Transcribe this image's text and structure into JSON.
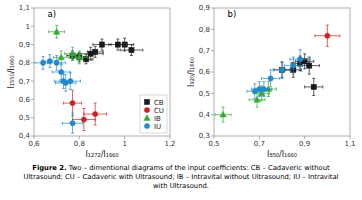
{
  "chart_data": [
    {
      "type": "scatter",
      "annotations": [
        "a)"
      ],
      "x_label": "I₁₂₇₂/I₁₆₆₀",
      "y_label": "I₁₅₅₀/I₁₆₆₀",
      "xlim": [
        0.6,
        1.2
      ],
      "ylim": [
        0.4,
        1.1
      ],
      "xticks": [
        {
          "value": 0.6,
          "label": "0,6"
        },
        {
          "value": 0.8,
          "label": "0,8"
        },
        1,
        {
          "value": 1.2,
          "label": "1,2"
        }
      ],
      "yticks": [
        {
          "value": 0.4,
          "label": "0,4"
        },
        {
          "value": 0.5,
          "label": "0,5"
        },
        {
          "value": 0.6,
          "label": "0,6"
        },
        {
          "value": 0.7,
          "label": "0,7"
        },
        {
          "value": 0.8,
          "label": "0,8"
        },
        {
          "value": 0.9,
          "label": "0,9"
        },
        1,
        {
          "value": 1.1,
          "label": "1,1"
        }
      ],
      "grid": false,
      "legend": "lower right",
      "series": [
        {
          "name": "CB",
          "color": "#1a1a1a",
          "marker": "square",
          "x": [
            0.77,
            0.8,
            0.83,
            0.87,
            0.9,
            0.97,
            1.0,
            1.03,
            0.85
          ],
          "values": [
            0.84,
            0.83,
            0.82,
            0.86,
            0.9,
            0.9,
            0.9,
            0.87,
            0.85
          ],
          "xerr": [
            0.025,
            0.025,
            0.03,
            0.035,
            0.04,
            0.04,
            0.04,
            0.05,
            0.055
          ],
          "yerr": [
            0.025,
            0.025,
            0.025,
            0.03,
            0.03,
            0.03,
            0.035,
            0.03,
            0.035
          ]
        },
        {
          "name": "CU",
          "color": "#cc2222",
          "marker": "circle",
          "x": [
            0.77,
            0.82,
            0.87
          ],
          "values": [
            0.58,
            0.49,
            0.52
          ],
          "xerr": [
            0.04,
            0.05,
            0.05
          ],
          "yerr": [
            0.07,
            0.06,
            0.06
          ]
        },
        {
          "name": "IB",
          "color": "#33aa33",
          "marker": "triangle-up",
          "x": [
            0.7,
            0.72,
            0.77,
            0.8
          ],
          "values": [
            0.97,
            0.83,
            0.85,
            0.83
          ],
          "xerr": [
            0.035,
            0.035,
            0.035,
            0.035
          ],
          "yerr": [
            0.035,
            0.035,
            0.035,
            0.035
          ]
        },
        {
          "name": "IU",
          "color": "#2288cc",
          "marker": "circle",
          "x": [
            0.64,
            0.67,
            0.7,
            0.72,
            0.73,
            0.74,
            0.76,
            0.77
          ],
          "values": [
            0.8,
            0.81,
            0.8,
            0.75,
            0.7,
            0.69,
            0.7,
            0.47
          ],
          "xerr": [
            0.035,
            0.035,
            0.04,
            0.04,
            0.04,
            0.045,
            0.045,
            0.045
          ],
          "yerr": [
            0.035,
            0.035,
            0.04,
            0.04,
            0.04,
            0.045,
            0.045,
            0.055
          ]
        }
      ]
    },
    {
      "type": "scatter",
      "annotations": [
        "b)"
      ],
      "x_label": "I₈₅₀/I₁₆₆₀",
      "y_label": "I₉₂₀/I₁₆₆₀",
      "xlim": [
        0.5,
        1.1
      ],
      "ylim": [
        0.3,
        0.9
      ],
      "xticks": [
        {
          "value": 0.5,
          "label": "0,5"
        },
        {
          "value": 0.7,
          "label": "0,7"
        },
        {
          "value": 0.9,
          "label": "0,9"
        },
        {
          "value": 1.1,
          "label": "1,1"
        }
      ],
      "yticks": [
        {
          "value": 0.3,
          "label": "0,3"
        },
        {
          "value": 0.4,
          "label": "0,4"
        },
        {
          "value": 0.5,
          "label": "0,5"
        },
        {
          "value": 0.6,
          "label": "0,6"
        },
        {
          "value": 0.7,
          "label": "0,7"
        },
        {
          "value": 0.8,
          "label": "0,8"
        },
        {
          "value": 0.9,
          "label": "0,9"
        }
      ],
      "grid": false,
      "series": [
        {
          "name": "CB",
          "color": "#1a1a1a",
          "marker": "square",
          "x": [
            0.8,
            0.85,
            0.88,
            0.9,
            0.92,
            0.94
          ],
          "values": [
            0.61,
            0.61,
            0.64,
            0.65,
            0.63,
            0.53
          ],
          "xerr": [
            0.035,
            0.035,
            0.04,
            0.04,
            0.045,
            0.04
          ],
          "yerr": [
            0.035,
            0.035,
            0.035,
            0.035,
            0.04,
            0.04
          ]
        },
        {
          "name": "CU",
          "color": "#cc2222",
          "marker": "circle",
          "x": [
            1.0
          ],
          "values": [
            0.77
          ],
          "xerr": [
            0.055
          ],
          "yerr": [
            0.05
          ]
        },
        {
          "name": "IB",
          "color": "#33aa33",
          "marker": "triangle-up",
          "x": [
            0.54,
            0.69,
            0.71,
            0.74
          ],
          "values": [
            0.4,
            0.47,
            0.5,
            0.52
          ],
          "xerr": [
            0.035,
            0.035,
            0.035,
            0.035
          ],
          "yerr": [
            0.035,
            0.035,
            0.035,
            0.035
          ]
        },
        {
          "name": "IU",
          "color": "#2288cc",
          "marker": "circle",
          "x": [
            0.68,
            0.7,
            0.72,
            0.75,
            0.8,
            0.85,
            0.88
          ],
          "values": [
            0.51,
            0.52,
            0.52,
            0.57,
            0.61,
            0.63,
            0.66
          ],
          "xerr": [
            0.035,
            0.035,
            0.035,
            0.04,
            0.04,
            0.04,
            0.045
          ],
          "yerr": [
            0.035,
            0.035,
            0.035,
            0.04,
            0.04,
            0.04,
            0.045
          ]
        }
      ]
    }
  ],
  "caption_label": "Figure 2.",
  "caption": [
    " Two – dimentional diagrams of the input coefficients: CB – Cadaveric without",
    "Ultrasound; CU – Cadaveric with Ultrasound; IB – Intravital without Ultrasound; IU – Intravital",
    "with Ultrasound."
  ]
}
